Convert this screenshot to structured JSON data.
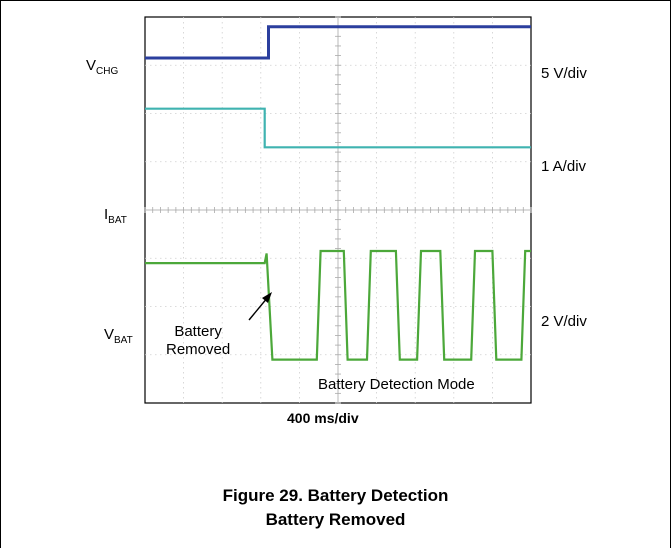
{
  "chart_data": {
    "type": "line",
    "title": "Figure 29. Battery Detection",
    "subtitle": "Battery Removed",
    "xlabel": "400 ms/div",
    "annotation_mode": "Battery Detection Mode",
    "annotation_event_line1": "Battery",
    "annotation_event_line2": "Removed",
    "grid": true,
    "divisions": {
      "x": 10,
      "y": 8
    },
    "x_range_div": [
      0,
      10
    ],
    "series": [
      {
        "name_main": "V",
        "name_sub": "CHG",
        "scale": "5 V/div",
        "color": "#2b3f9e",
        "x": [
          0,
          3.2,
          3.2,
          10
        ],
        "y": [
          7.15,
          7.15,
          7.8,
          7.8
        ]
      },
      {
        "name_main": "I",
        "name_sub": "BAT",
        "scale": "1 A/div",
        "color": "#3fb3b0",
        "x": [
          0,
          3.1,
          3.1,
          10
        ],
        "y": [
          6.1,
          6.1,
          5.3,
          5.3
        ]
      },
      {
        "name_main": "V",
        "name_sub": "BAT",
        "scale": "2 V/div",
        "color": "#4ca83a",
        "x": [
          0,
          3.1,
          3.15,
          3.3,
          4.45,
          4.55,
          5.15,
          5.25,
          5.75,
          5.85,
          6.5,
          6.6,
          7.05,
          7.15,
          7.65,
          7.75,
          8.45,
          8.55,
          9.0,
          9.1,
          9.75,
          9.85,
          10.0
        ],
        "y": [
          2.9,
          2.9,
          3.1,
          0.9,
          0.9,
          3.15,
          3.15,
          0.9,
          0.9,
          3.15,
          3.15,
          0.9,
          0.9,
          3.15,
          3.15,
          0.9,
          0.9,
          3.15,
          3.15,
          0.9,
          0.9,
          3.15,
          3.15
        ]
      }
    ]
  }
}
